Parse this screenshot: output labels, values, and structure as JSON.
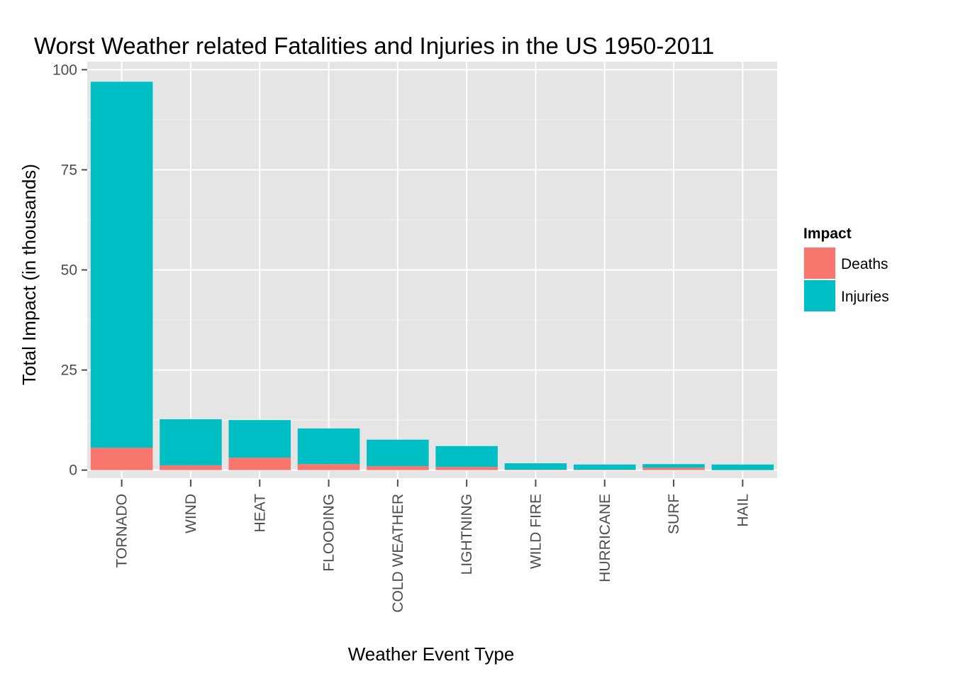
{
  "chart_data": {
    "type": "bar",
    "stacked": true,
    "title": "Worst Weather related Fatalities and Injuries in the US 1950-2011",
    "xlabel": "Weather Event Type",
    "ylabel": "Total Impact (in thousands)",
    "ylim": [
      -2,
      102
    ],
    "yticks": [
      0,
      25,
      50,
      75,
      100
    ],
    "grid": true,
    "legend": {
      "title": "Impact",
      "position": "right"
    },
    "categories": [
      "TORNADO",
      "WIND",
      "HEAT",
      "FLOODING",
      "COLD WEATHER",
      "LIGHTNING",
      "WILD FIRE",
      "HURRICANE",
      "SURF",
      "HAIL"
    ],
    "series": [
      {
        "name": "Deaths",
        "color": "#F8766D",
        "values": [
          5.6,
          1.2,
          3.1,
          1.5,
          1.0,
          0.8,
          0.1,
          0.1,
          0.6,
          0.0
        ]
      },
      {
        "name": "Injuries",
        "color": "#00BFC4",
        "values": [
          91.4,
          11.5,
          9.4,
          8.9,
          6.6,
          5.2,
          1.6,
          1.3,
          0.9,
          1.4
        ]
      }
    ]
  }
}
